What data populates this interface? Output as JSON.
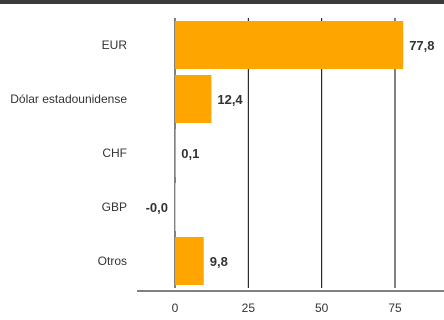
{
  "chart_data": {
    "type": "bar",
    "orientation": "horizontal",
    "categories": [
      "EUR",
      "Dólar estadounidense",
      "CHF",
      "GBP",
      "Otros"
    ],
    "values": [
      77.8,
      12.4,
      0.1,
      -0.0,
      9.8
    ],
    "value_labels": [
      "77,8",
      "12,4",
      "0,1",
      "-0,0",
      "9,8"
    ],
    "x_ticks": [
      0,
      25,
      50,
      75
    ],
    "x_tick_labels": [
      "0",
      "25",
      "50",
      "75"
    ],
    "xlim": [
      -13,
      91
    ],
    "grid": "vertical",
    "bar_color": "#FFA500",
    "grid_color": "#000000"
  }
}
